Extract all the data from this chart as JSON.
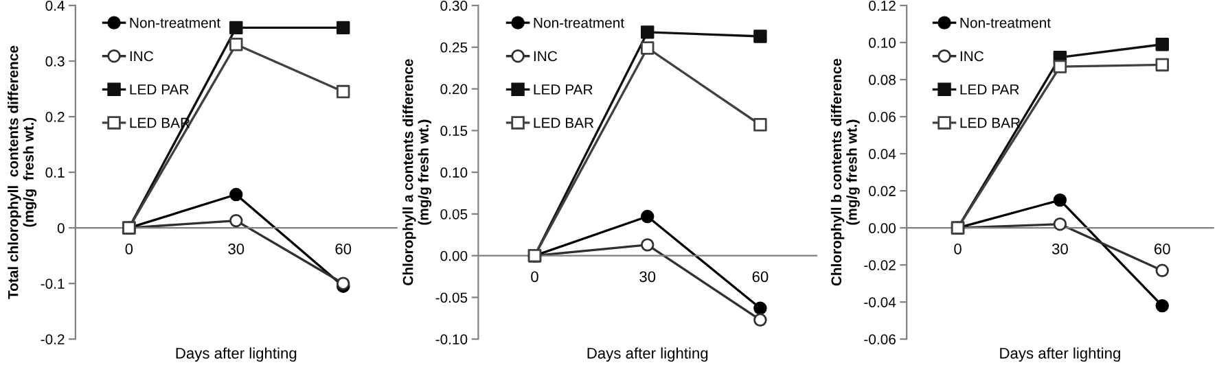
{
  "chart_data": [
    {
      "type": "line",
      "xlabel": "Days after lighting",
      "ylabel": "Total chlorophyll  contents difference\n(mg/g  fresh wt.)",
      "categories": [
        "0",
        "30",
        "60"
      ],
      "ylim": [
        -0.2,
        0.4
      ],
      "yticks": [
        -0.2,
        -0.1,
        0,
        0.1,
        0.2,
        0.3,
        0.4
      ],
      "legend": "top left",
      "grid": false,
      "series": [
        {
          "name": "Non-treatment",
          "color": "#000000",
          "marker": "circle",
          "values": [
            0,
            0.06,
            -0.105
          ]
        },
        {
          "name": "INC",
          "color": "#303030",
          "colors": [
            "#ffffff",
            "#ffffff",
            "#ffffff"
          ],
          "marker": "circle",
          "values": [
            0,
            0.013,
            -0.1
          ]
        },
        {
          "name": "LED PAR",
          "color": "#101010",
          "marker": "square",
          "values": [
            0,
            0.36,
            0.36
          ]
        },
        {
          "name": "LED BAR",
          "color": "#404040",
          "colors": [
            "#ffffff",
            "#ffffff",
            "#ffffff"
          ],
          "marker": "square",
          "values": [
            0,
            0.33,
            0.245
          ]
        }
      ]
    },
    {
      "type": "line",
      "xlabel": "Days after lighting",
      "ylabel": "Chlorophyll a contents difference\n(mg/g fresh wt.)",
      "categories": [
        "0",
        "30",
        "60"
      ],
      "ylim": [
        -0.1,
        0.3
      ],
      "yticks": [
        {
          "value": -0.1,
          "label": "-0.10"
        },
        {
          "value": -0.05,
          "label": "-0.05"
        },
        {
          "value": 0,
          "label": "0.00"
        },
        {
          "value": 0.05,
          "label": "0.05"
        },
        {
          "value": 0.1,
          "label": "0.10"
        },
        {
          "value": 0.15,
          "label": "0.15"
        },
        {
          "value": 0.2,
          "label": "0.20"
        },
        {
          "value": 0.25,
          "label": "0.25"
        },
        {
          "value": 0.3,
          "label": "0.30"
        }
      ],
      "legend": "top left",
      "grid": false,
      "series": [
        {
          "name": "Non-treatment",
          "color": "#000000",
          "marker": "circle",
          "values": [
            0,
            0.047,
            -0.063
          ]
        },
        {
          "name": "INC",
          "color": "#303030",
          "colors": [
            "#ffffff",
            "#ffffff",
            "#ffffff"
          ],
          "marker": "circle",
          "values": [
            0,
            0.013,
            -0.077
          ]
        },
        {
          "name": "LED PAR",
          "color": "#101010",
          "marker": "square",
          "values": [
            0,
            0.268,
            0.263
          ]
        },
        {
          "name": "LED BAR",
          "color": "#404040",
          "colors": [
            "#ffffff",
            "#ffffff",
            "#ffffff"
          ],
          "marker": "square",
          "values": [
            0,
            0.249,
            0.157
          ]
        }
      ]
    },
    {
      "type": "line",
      "xlabel": "Days after lighting",
      "ylabel": "Chlorophyll b contents difference\n(mg/g fresh wt.)",
      "categories": [
        "0",
        "30",
        "60"
      ],
      "ylim": [
        -0.06,
        0.12
      ],
      "yticks": [
        {
          "value": -0.06,
          "label": "-0.06"
        },
        {
          "value": -0.04,
          "label": "-0.04"
        },
        {
          "value": -0.02,
          "label": "-0.02"
        },
        {
          "value": 0,
          "label": "0.00"
        },
        {
          "value": 0.02,
          "label": "0.02"
        },
        {
          "value": 0.04,
          "label": "0.04"
        },
        {
          "value": 0.06,
          "label": "0.06"
        },
        {
          "value": 0.08,
          "label": "0.08"
        },
        {
          "value": 0.1,
          "label": "0.10"
        },
        {
          "value": 0.12,
          "label": "0.12"
        }
      ],
      "legend": "top left",
      "grid": false,
      "series": [
        {
          "name": "Non-treatment",
          "color": "#000000",
          "marker": "circle",
          "values": [
            0,
            0.015,
            -0.042
          ]
        },
        {
          "name": "INC",
          "color": "#303030",
          "colors": [
            "#ffffff",
            "#ffffff",
            "#ffffff"
          ],
          "marker": "circle",
          "values": [
            0,
            0.002,
            -0.023
          ]
        },
        {
          "name": "LED PAR",
          "color": "#101010",
          "marker": "square",
          "values": [
            0,
            0.092,
            0.099
          ]
        },
        {
          "name": "LED BAR",
          "color": "#404040",
          "colors": [
            "#ffffff",
            "#ffffff",
            "#ffffff"
          ],
          "marker": "square",
          "values": [
            0,
            0.087,
            0.088
          ]
        }
      ]
    }
  ]
}
